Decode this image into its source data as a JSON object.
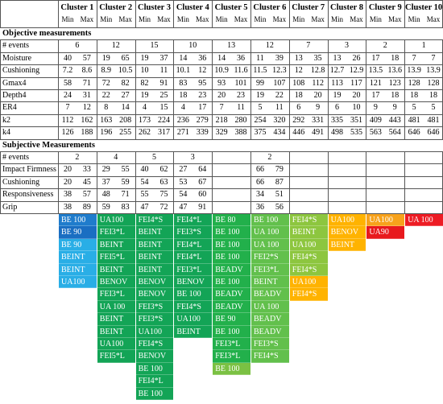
{
  "header": {
    "clusters": [
      "Cluster 1",
      "Cluster 2",
      "Cluster 3",
      "Cluster 4",
      "Cluster 5",
      "Cluster 6",
      "Cluster 7",
      "Cluster 8",
      "Cluster 9",
      "Cluster 10"
    ],
    "min": "Min",
    "max": "Max"
  },
  "objective": {
    "title": "Objective measurements",
    "events_label": "# events",
    "events": [
      6,
      12,
      15,
      10,
      13,
      12,
      7,
      3,
      2,
      1
    ],
    "rows": [
      {
        "label": "Moisture",
        "values": [
          [
            40,
            57
          ],
          [
            19,
            65
          ],
          [
            19,
            37
          ],
          [
            14,
            36
          ],
          [
            14,
            36
          ],
          [
            11,
            39
          ],
          [
            13,
            35
          ],
          [
            13,
            26
          ],
          [
            17,
            18
          ],
          [
            7,
            7
          ]
        ]
      },
      {
        "label": "Cushioning",
        "values": [
          [
            7.2,
            8.6
          ],
          [
            8.9,
            10.5
          ],
          [
            10,
            11
          ],
          [
            10.1,
            12
          ],
          [
            10.9,
            11.6
          ],
          [
            11.5,
            12.3
          ],
          [
            12,
            12.8
          ],
          [
            12.7,
            12.9
          ],
          [
            13.5,
            13.6
          ],
          [
            13.9,
            13.9
          ]
        ]
      },
      {
        "label": "Gmax4",
        "values": [
          [
            58,
            71
          ],
          [
            72,
            82
          ],
          [
            82,
            91
          ],
          [
            83,
            95
          ],
          [
            93,
            101
          ],
          [
            99,
            107
          ],
          [
            108,
            112
          ],
          [
            113,
            117
          ],
          [
            121,
            123
          ],
          [
            128,
            128
          ]
        ]
      },
      {
        "label": "Depth4",
        "values": [
          [
            24,
            31
          ],
          [
            22,
            27
          ],
          [
            19,
            25
          ],
          [
            18,
            23
          ],
          [
            20,
            23
          ],
          [
            19,
            22
          ],
          [
            18,
            20
          ],
          [
            19,
            20
          ],
          [
            17,
            18
          ],
          [
            18,
            18
          ]
        ]
      },
      {
        "label": "ER4",
        "values": [
          [
            7,
            12
          ],
          [
            8,
            14
          ],
          [
            4,
            15
          ],
          [
            4,
            17
          ],
          [
            7,
            11
          ],
          [
            5,
            11
          ],
          [
            6,
            9
          ],
          [
            6,
            10
          ],
          [
            9,
            9
          ],
          [
            5,
            5
          ]
        ]
      },
      {
        "label": "k2",
        "values": [
          [
            112,
            162
          ],
          [
            163,
            208
          ],
          [
            173,
            224
          ],
          [
            236,
            279
          ],
          [
            218,
            280
          ],
          [
            254,
            320
          ],
          [
            292,
            331
          ],
          [
            335,
            351
          ],
          [
            409,
            443
          ],
          [
            481,
            481
          ]
        ]
      },
      {
        "label": "k4",
        "values": [
          [
            126,
            188
          ],
          [
            196,
            255
          ],
          [
            262,
            317
          ],
          [
            271,
            339
          ],
          [
            329,
            388
          ],
          [
            375,
            434
          ],
          [
            446,
            491
          ],
          [
            498,
            535
          ],
          [
            563,
            564
          ],
          [
            646,
            646
          ]
        ]
      }
    ]
  },
  "subjective": {
    "title": "Subjective Measurements",
    "events_label": "# events",
    "events": [
      2,
      4,
      5,
      3,
      null,
      2,
      null,
      null,
      null,
      null
    ],
    "rows": [
      {
        "label": "Impact Firmness",
        "values": [
          [
            20,
            33
          ],
          [
            29,
            55
          ],
          [
            40,
            62
          ],
          [
            27,
            64
          ],
          null,
          [
            66,
            79
          ],
          null,
          null,
          null,
          null
        ]
      },
      {
        "label": "Cushioning",
        "values": [
          [
            20,
            45
          ],
          [
            37,
            59
          ],
          [
            54,
            63
          ],
          [
            53,
            67
          ],
          null,
          [
            66,
            87
          ],
          null,
          null,
          null,
          null
        ]
      },
      {
        "label": "Responsiveness",
        "values": [
          [
            38,
            57
          ],
          [
            48,
            71
          ],
          [
            55,
            75
          ],
          [
            54,
            60
          ],
          null,
          [
            34,
            51
          ],
          null,
          null,
          null,
          null
        ]
      },
      {
        "label": "Grip",
        "values": [
          [
            38,
            89
          ],
          [
            59,
            83
          ],
          [
            47,
            72
          ],
          [
            47,
            91
          ],
          null,
          [
            36,
            56
          ],
          null,
          null,
          null,
          null
        ]
      }
    ]
  },
  "event_lists": [
    {
      "segments": [
        {
          "color": "#1f7ccc",
          "items": [
            "BE 100"
          ]
        },
        {
          "color": "#1a6ec2",
          "items": [
            "BE 90"
          ]
        },
        {
          "color": "#29aee6",
          "items": [
            "BE 90",
            "BEINT",
            "BEINT",
            "UA100"
          ]
        }
      ]
    },
    {
      "segments": [
        {
          "color": "#13a456",
          "items": [
            "UA100",
            "FEI3*L",
            "BEINT",
            "FEI5*L",
            "BEINT",
            "BENOV",
            "FEI3*L",
            "UA 100",
            "BEINT",
            "BEINT",
            "UA100",
            "FEI5*L"
          ]
        }
      ]
    },
    {
      "segments": [
        {
          "color": "#13a456",
          "items": [
            "FEI4*S",
            "BEINT",
            "BEINT",
            "BEINT",
            "BEINT",
            "BENOV",
            "BENOV",
            "FEI3*S",
            "FEI3*S",
            "UA100",
            "FEI4*S",
            "BENOV",
            "BE 100",
            "FEI4*L",
            "BE 100"
          ]
        }
      ]
    },
    {
      "segments": [
        {
          "color": "#13a456",
          "items": [
            "FEI4*L",
            "FEI3*S",
            "FEI4*L",
            "FEI4*L",
            "FEI3*L",
            "BENOV",
            "BE 100",
            "FEI4*S",
            "UA100",
            "BEINT"
          ]
        }
      ]
    },
    {
      "segments": [
        {
          "color": "#22b04b",
          "items": [
            "BE 80",
            "BE 100",
            "BE 100",
            "BE 100",
            "BEADV",
            "BE 100",
            "BEADV",
            "BEADV",
            "BE 90",
            "BE 100",
            "FEI3*L",
            "FEI3*L"
          ]
        },
        {
          "color": "#7bc143",
          "items": [
            "BE 100"
          ]
        }
      ]
    },
    {
      "segments": [
        {
          "color": "#62c04c",
          "items": [
            "BE 100",
            "UA 100",
            "UA 100",
            "FEI2*S",
            "FEI3*L",
            "BEINT",
            "BEADV",
            "UA 100",
            "BEADV",
            "BEADV",
            "FEI3*S",
            "FEI4*S"
          ]
        }
      ]
    },
    {
      "segments": [
        {
          "color": "#8dc63f",
          "items": [
            "FEI4*S",
            "BEINT",
            "UA100",
            "FEI4*S",
            "FEI4*S"
          ]
        },
        {
          "color": "#ffb300",
          "items": [
            "UA100",
            "FEI4*S"
          ]
        }
      ]
    },
    {
      "segments": [
        {
          "color": "#ffb300",
          "items": [
            "UA100",
            "BENOV",
            "BEINT"
          ]
        }
      ]
    },
    {
      "segments": [
        {
          "color": "#f7a21b",
          "items": [
            "UA100"
          ]
        },
        {
          "color": "#e8191d",
          "items": [
            "UA90"
          ]
        }
      ]
    },
    {
      "segments": [
        {
          "color": "#ed1c24",
          "items": [
            "UA 100"
          ]
        }
      ]
    }
  ]
}
